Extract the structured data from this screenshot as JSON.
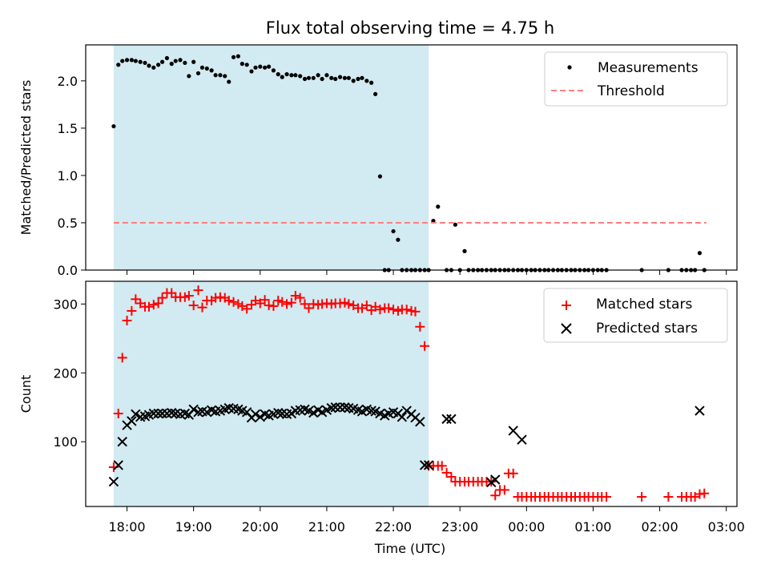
{
  "figure_title": "Flux total observing time = 4.75 h",
  "colors": {
    "shade": "#add8e6",
    "measure": "#000000",
    "threshold": "#ff7f7f",
    "matched": "#ff0000",
    "predicted": "#000000"
  },
  "chart_data": [
    {
      "type": "scatter",
      "title": "Flux total observing time = 4.75 h",
      "xlabel": "",
      "ylabel": "Matched/Predicted stars",
      "xlim": [
        17.38,
        27.16
      ],
      "ylim": [
        0.0,
        2.38
      ],
      "yticks": [
        0.0,
        0.5,
        1.0,
        1.5,
        2.0
      ],
      "ytick_labels": [
        "0.0",
        "0.5",
        "1.0",
        "1.5",
        "2.0"
      ],
      "shaded_region": [
        17.8,
        22.53
      ],
      "legend": {
        "position": "top-right",
        "entries": [
          "Measurements",
          "Threshold"
        ]
      },
      "series": [
        {
          "name": "Measurements",
          "marker": "dot",
          "x": [
            17.8,
            17.87,
            17.93,
            18.0,
            18.07,
            18.13,
            18.2,
            18.27,
            18.33,
            18.4,
            18.47,
            18.53,
            18.6,
            18.67,
            18.73,
            18.8,
            18.87,
            18.93,
            19.0,
            19.07,
            19.13,
            19.2,
            19.27,
            19.33,
            19.4,
            19.47,
            19.53,
            19.6,
            19.67,
            19.73,
            19.8,
            19.87,
            19.93,
            20.0,
            20.07,
            20.13,
            20.2,
            20.27,
            20.33,
            20.4,
            20.47,
            20.53,
            20.6,
            20.67,
            20.73,
            20.8,
            20.87,
            20.93,
            21.0,
            21.07,
            21.13,
            21.2,
            21.27,
            21.33,
            21.4,
            21.47,
            21.53,
            21.6,
            21.67,
            21.73,
            21.8,
            21.87,
            21.93,
            22.0,
            22.07,
            22.13,
            22.2,
            22.27,
            22.33,
            22.4,
            22.47,
            22.53,
            22.6,
            22.67,
            22.8,
            22.87,
            22.93,
            23.0,
            23.07,
            23.13,
            23.2,
            23.27,
            23.33,
            23.4,
            23.47,
            23.53,
            23.6,
            23.67,
            23.73,
            23.8,
            23.87,
            23.93,
            24.0,
            24.07,
            24.13,
            24.2,
            24.27,
            24.33,
            24.4,
            24.47,
            24.53,
            24.6,
            24.67,
            24.73,
            24.8,
            24.87,
            24.93,
            25.0,
            25.07,
            25.13,
            25.2,
            25.73,
            26.13,
            26.33,
            26.4,
            26.47,
            26.53,
            26.6,
            26.67
          ],
          "y": [
            1.52,
            2.17,
            2.21,
            2.22,
            2.22,
            2.21,
            2.2,
            2.19,
            2.16,
            2.14,
            2.17,
            2.2,
            2.24,
            2.18,
            2.21,
            2.22,
            2.19,
            2.05,
            2.2,
            2.08,
            2.14,
            2.13,
            2.11,
            2.06,
            2.06,
            2.05,
            1.99,
            2.25,
            2.26,
            2.18,
            2.17,
            2.1,
            2.14,
            2.15,
            2.14,
            2.15,
            2.11,
            2.07,
            2.04,
            2.07,
            2.06,
            2.06,
            2.05,
            2.02,
            2.03,
            2.03,
            2.06,
            2.02,
            2.06,
            2.03,
            2.02,
            2.04,
            2.03,
            2.03,
            2.0,
            2.02,
            2.03,
            2.0,
            1.98,
            1.86,
            0.99,
            0.0,
            0.0,
            0.41,
            0.32,
            0.0,
            0.0,
            0.0,
            0.0,
            0.0,
            0.0,
            0.0,
            0.52,
            0.67,
            0.0,
            0.0,
            0.48,
            0.0,
            0.2,
            0.0,
            0.0,
            0.0,
            0.0,
            0.0,
            0.0,
            0.0,
            0.0,
            0.0,
            0.0,
            0.0,
            0.0,
            0.0,
            0.0,
            0.0,
            0.0,
            0.0,
            0.0,
            0.0,
            0.0,
            0.0,
            0.0,
            0.0,
            0.0,
            0.0,
            0.0,
            0.0,
            0.0,
            0.0,
            0.0,
            0.0,
            0.0,
            0.0,
            0.0,
            0.0,
            0.0,
            0.0,
            0.0,
            0.18,
            0.0
          ]
        },
        {
          "name": "Threshold",
          "style": "dashed-line",
          "x": [
            17.8,
            26.7
          ],
          "y": [
            0.5,
            0.5
          ]
        }
      ]
    },
    {
      "type": "scatter",
      "xlabel": "Time (UTC)",
      "ylabel": "Count",
      "xlim": [
        17.38,
        27.16
      ],
      "ylim": [
        6.0,
        333.0
      ],
      "yticks": [
        100,
        200,
        300
      ],
      "ytick_labels": [
        "100",
        "200",
        "300"
      ],
      "xticks": [
        18,
        19,
        20,
        21,
        22,
        23,
        24,
        25,
        26,
        27
      ],
      "xtick_labels": [
        "18:00",
        "19:00",
        "20:00",
        "21:00",
        "22:00",
        "23:00",
        "00:00",
        "01:00",
        "02:00",
        "03:00"
      ],
      "shaded_region": [
        17.8,
        22.53
      ],
      "legend": {
        "position": "top-right",
        "entries": [
          "Matched stars",
          "Predicted stars"
        ]
      },
      "series": [
        {
          "name": "Matched stars",
          "marker": "plus",
          "x": [
            17.8,
            17.87,
            17.93,
            18.0,
            18.07,
            18.13,
            18.2,
            18.27,
            18.33,
            18.4,
            18.47,
            18.53,
            18.6,
            18.67,
            18.73,
            18.8,
            18.87,
            18.93,
            19.0,
            19.07,
            19.13,
            19.2,
            19.27,
            19.33,
            19.4,
            19.47,
            19.53,
            19.6,
            19.67,
            19.73,
            19.8,
            19.87,
            19.93,
            20.0,
            20.07,
            20.13,
            20.2,
            20.27,
            20.33,
            20.4,
            20.47,
            20.53,
            20.6,
            20.67,
            20.73,
            20.8,
            20.87,
            20.93,
            21.0,
            21.07,
            21.13,
            21.2,
            21.27,
            21.33,
            21.4,
            21.47,
            21.53,
            21.6,
            21.67,
            21.73,
            21.8,
            21.87,
            21.93,
            22.0,
            22.07,
            22.13,
            22.2,
            22.27,
            22.33,
            22.4,
            22.47,
            22.53,
            22.6,
            22.67,
            22.73,
            22.8,
            22.87,
            22.93,
            23.0,
            23.07,
            23.13,
            23.2,
            23.27,
            23.33,
            23.4,
            23.47,
            23.53,
            23.6,
            23.67,
            23.73,
            23.8,
            23.87,
            23.93,
            24.0,
            24.07,
            24.13,
            24.2,
            24.27,
            24.33,
            24.4,
            24.47,
            24.53,
            24.6,
            24.67,
            24.73,
            24.8,
            24.87,
            24.93,
            25.0,
            25.07,
            25.13,
            25.2,
            25.73,
            26.13,
            26.33,
            26.4,
            26.47,
            26.53,
            26.6,
            26.67
          ],
          "y": [
            63,
            141,
            222,
            276,
            290,
            307,
            301,
            296,
            296,
            299,
            301,
            309,
            316,
            316,
            310,
            310,
            310,
            312,
            298,
            320,
            295,
            305,
            305,
            309,
            310,
            309,
            305,
            303,
            300,
            297,
            293,
            299,
            305,
            301,
            306,
            298,
            297,
            305,
            303,
            300,
            302,
            312,
            309,
            300,
            294,
            300,
            299,
            300,
            301,
            300,
            301,
            301,
            302,
            300,
            298,
            294,
            294,
            298,
            291,
            296,
            292,
            294,
            294,
            292,
            290,
            292,
            292,
            290,
            289,
            267,
            239,
            65,
            65,
            65,
            65,
            55,
            49,
            42,
            42,
            42,
            42,
            42,
            42,
            42,
            42,
            42,
            22,
            30,
            30,
            54,
            54,
            20,
            20,
            20,
            20,
            20,
            20,
            20,
            20,
            20,
            20,
            20,
            20,
            20,
            20,
            20,
            20,
            20,
            20,
            20,
            20,
            20,
            20,
            20,
            20,
            20,
            20,
            20,
            24,
            25
          ]
        },
        {
          "name": "Predicted stars",
          "marker": "x",
          "x": [
            17.8,
            17.87,
            17.93,
            18.0,
            18.07,
            18.13,
            18.2,
            18.27,
            18.33,
            18.4,
            18.47,
            18.53,
            18.6,
            18.67,
            18.73,
            18.8,
            18.87,
            18.93,
            19.0,
            19.07,
            19.13,
            19.2,
            19.27,
            19.33,
            19.4,
            19.47,
            19.53,
            19.6,
            19.67,
            19.73,
            19.8,
            19.87,
            19.93,
            20.0,
            20.07,
            20.13,
            20.2,
            20.27,
            20.33,
            20.4,
            20.47,
            20.53,
            20.6,
            20.67,
            20.73,
            20.8,
            20.87,
            20.93,
            21.0,
            21.07,
            21.13,
            21.2,
            21.27,
            21.33,
            21.4,
            21.47,
            21.53,
            21.6,
            21.67,
            21.73,
            21.8,
            21.87,
            21.93,
            22.0,
            22.07,
            22.13,
            22.2,
            22.27,
            22.33,
            22.4,
            22.47,
            22.53,
            22.8,
            22.87,
            23.47,
            23.53,
            23.8,
            23.93,
            26.6
          ],
          "y": [
            42,
            66,
            100,
            124,
            130,
            140,
            136,
            137,
            139,
            141,
            141,
            141,
            141,
            142,
            141,
            140,
            141,
            139,
            147,
            143,
            144,
            143,
            146,
            144,
            145,
            147,
            149,
            148,
            147,
            145,
            143,
            135,
            140,
            136,
            140,
            138,
            140,
            142,
            141,
            140,
            141,
            145,
            146,
            147,
            145,
            142,
            146,
            143,
            146,
            149,
            150,
            150,
            150,
            149,
            148,
            146,
            144,
            147,
            145,
            144,
            141,
            138,
            141,
            143,
            141,
            136,
            145,
            140,
            135,
            129,
            66,
            66,
            133,
            133,
            41,
            45,
            116,
            103,
            145
          ]
        }
      ]
    }
  ]
}
